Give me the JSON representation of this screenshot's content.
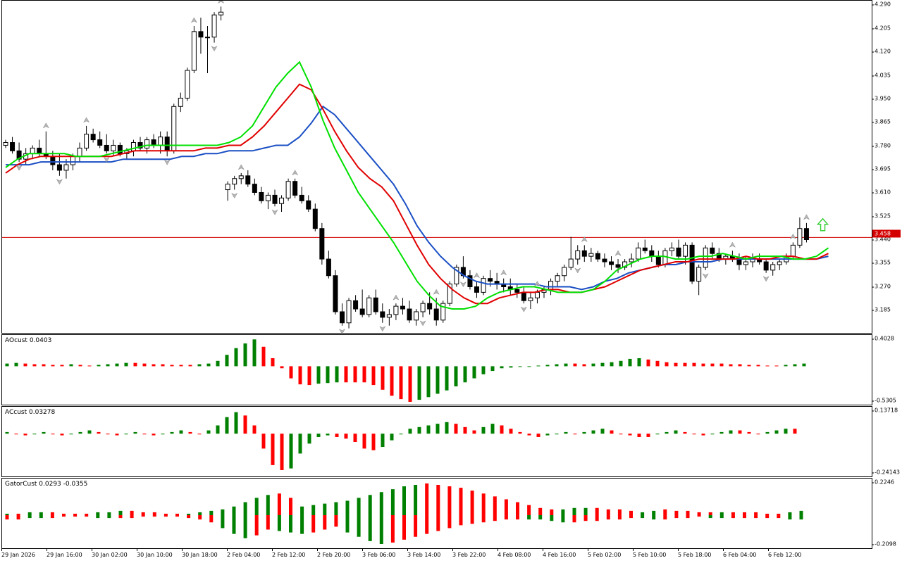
{
  "main_chart": {
    "price_ticks": [
      "4.290",
      "4.205",
      "4.120",
      "4.035",
      "3.950",
      "3.865",
      "3.780",
      "3.695",
      "3.610",
      "3.525",
      "3.440",
      "3.355",
      "3.270",
      "3.185"
    ],
    "price_range": [
      3.124,
      4.296
    ],
    "current_price": "3.458",
    "current_price_value": 3.458,
    "colors": {
      "bull_candle": "#ffffff",
      "bear_candle": "#000000",
      "price_line": "#d40000",
      "green_line": "#00e000",
      "red_line": "#e00000",
      "blue_line": "#1a4fc4",
      "fractal_arrow": "#b5b5b5",
      "buy_arrow": "#3ccf3c"
    },
    "candles": [
      [
        3.79,
        3.81,
        3.78,
        3.8
      ],
      [
        3.8,
        3.82,
        3.76,
        3.77
      ],
      [
        3.77,
        3.8,
        3.73,
        3.74
      ],
      [
        3.74,
        3.78,
        3.72,
        3.76
      ],
      [
        3.76,
        3.79,
        3.74,
        3.78
      ],
      [
        3.78,
        3.81,
        3.75,
        3.76
      ],
      [
        3.76,
        3.84,
        3.74,
        3.75
      ],
      [
        3.75,
        3.77,
        3.7,
        3.72
      ],
      [
        3.72,
        3.76,
        3.68,
        3.7
      ],
      [
        3.7,
        3.74,
        3.67,
        3.72
      ],
      [
        3.72,
        3.76,
        3.7,
        3.75
      ],
      [
        3.75,
        3.8,
        3.73,
        3.78
      ],
      [
        3.78,
        3.86,
        3.77,
        3.83
      ],
      [
        3.83,
        3.85,
        3.8,
        3.81
      ],
      [
        3.81,
        3.84,
        3.78,
        3.79
      ],
      [
        3.79,
        3.83,
        3.76,
        3.77
      ],
      [
        3.77,
        3.81,
        3.75,
        3.79
      ],
      [
        3.79,
        3.8,
        3.75,
        3.76
      ],
      [
        3.76,
        3.78,
        3.74,
        3.77
      ],
      [
        3.77,
        3.81,
        3.75,
        3.8
      ],
      [
        3.8,
        3.82,
        3.77,
        3.78
      ],
      [
        3.78,
        3.82,
        3.76,
        3.81
      ],
      [
        3.81,
        3.83,
        3.78,
        3.79
      ],
      [
        3.79,
        3.84,
        3.76,
        3.82
      ],
      [
        3.82,
        3.84,
        3.75,
        3.77
      ],
      [
        3.77,
        3.94,
        3.76,
        3.93
      ],
      [
        3.93,
        3.98,
        3.91,
        3.96
      ],
      [
        3.96,
        4.07,
        3.95,
        4.06
      ],
      [
        4.06,
        4.22,
        4.05,
        4.2
      ],
      [
        4.2,
        4.25,
        4.12,
        4.18
      ],
      [
        4.18,
        4.22,
        4.05,
        4.18
      ],
      [
        4.18,
        4.27,
        4.16,
        4.26
      ],
      [
        4.26,
        4.29,
        4.24,
        4.27
      ],
      [
        3.63,
        3.66,
        3.59,
        3.65
      ],
      [
        3.65,
        3.68,
        3.63,
        3.67
      ],
      [
        3.67,
        3.69,
        3.65,
        3.68
      ],
      [
        3.68,
        3.7,
        3.64,
        3.65
      ],
      [
        3.65,
        3.67,
        3.61,
        3.62
      ],
      [
        3.62,
        3.64,
        3.58,
        3.59
      ],
      [
        3.59,
        3.62,
        3.56,
        3.61
      ],
      [
        3.61,
        3.63,
        3.57,
        3.58
      ],
      [
        3.58,
        3.61,
        3.55,
        3.6
      ],
      [
        3.6,
        3.67,
        3.59,
        3.66
      ],
      [
        3.66,
        3.67,
        3.6,
        3.61
      ],
      [
        3.61,
        3.64,
        3.58,
        3.59
      ],
      [
        3.59,
        3.61,
        3.55,
        3.56
      ],
      [
        3.56,
        3.58,
        3.48,
        3.49
      ],
      [
        3.49,
        3.51,
        3.36,
        3.38
      ],
      [
        3.38,
        3.41,
        3.31,
        3.32
      ],
      [
        3.32,
        3.34,
        3.18,
        3.19
      ],
      [
        3.19,
        3.22,
        3.14,
        3.15
      ],
      [
        3.15,
        3.24,
        3.13,
        3.23
      ],
      [
        3.23,
        3.25,
        3.19,
        3.2
      ],
      [
        3.2,
        3.27,
        3.17,
        3.18
      ],
      [
        3.18,
        3.25,
        3.17,
        3.24
      ],
      [
        3.24,
        3.27,
        3.18,
        3.19
      ],
      [
        3.19,
        3.22,
        3.15,
        3.17
      ],
      [
        3.17,
        3.2,
        3.14,
        3.18
      ],
      [
        3.18,
        3.22,
        3.16,
        3.21
      ],
      [
        3.21,
        3.24,
        3.18,
        3.2
      ],
      [
        3.2,
        3.23,
        3.15,
        3.16
      ],
      [
        3.16,
        3.2,
        3.14,
        3.19
      ],
      [
        3.19,
        3.23,
        3.17,
        3.22
      ],
      [
        3.22,
        3.26,
        3.18,
        3.2
      ],
      [
        3.2,
        3.24,
        3.14,
        3.16
      ],
      [
        3.16,
        3.23,
        3.15,
        3.22
      ],
      [
        3.22,
        3.3,
        3.21,
        3.29
      ],
      [
        3.29,
        3.36,
        3.28,
        3.35
      ],
      [
        3.35,
        3.39,
        3.31,
        3.32
      ],
      [
        3.32,
        3.34,
        3.27,
        3.28
      ],
      [
        3.28,
        3.3,
        3.24,
        3.26
      ],
      [
        3.26,
        3.32,
        3.25,
        3.31
      ],
      [
        3.31,
        3.34,
        3.28,
        3.3
      ],
      [
        3.3,
        3.33,
        3.27,
        3.29
      ],
      [
        3.29,
        3.31,
        3.26,
        3.28
      ],
      [
        3.28,
        3.31,
        3.25,
        3.27
      ],
      [
        3.27,
        3.29,
        3.24,
        3.26
      ],
      [
        3.26,
        3.28,
        3.22,
        3.23
      ],
      [
        3.23,
        3.26,
        3.2,
        3.24
      ],
      [
        3.24,
        3.27,
        3.22,
        3.26
      ],
      [
        3.26,
        3.28,
        3.24,
        3.27
      ],
      [
        3.27,
        3.31,
        3.25,
        3.3
      ],
      [
        3.3,
        3.33,
        3.28,
        3.32
      ],
      [
        3.32,
        3.36,
        3.3,
        3.35
      ],
      [
        3.35,
        3.46,
        3.34,
        3.38
      ],
      [
        3.38,
        3.43,
        3.36,
        3.41
      ],
      [
        3.41,
        3.43,
        3.37,
        3.39
      ],
      [
        3.39,
        3.42,
        3.37,
        3.4
      ],
      [
        3.4,
        3.41,
        3.37,
        3.38
      ],
      [
        3.38,
        3.4,
        3.35,
        3.37
      ],
      [
        3.37,
        3.39,
        3.34,
        3.36
      ],
      [
        3.36,
        3.38,
        3.33,
        3.35
      ],
      [
        3.35,
        3.38,
        3.34,
        3.37
      ],
      [
        3.37,
        3.4,
        3.35,
        3.38
      ],
      [
        3.38,
        3.44,
        3.37,
        3.42
      ],
      [
        3.42,
        3.45,
        3.4,
        3.41
      ],
      [
        3.41,
        3.43,
        3.37,
        3.39
      ],
      [
        3.39,
        3.41,
        3.35,
        3.36
      ],
      [
        3.36,
        3.42,
        3.35,
        3.41
      ],
      [
        3.41,
        3.44,
        3.39,
        3.42
      ],
      [
        3.42,
        3.45,
        3.38,
        3.39
      ],
      [
        3.39,
        3.44,
        3.36,
        3.43
      ],
      [
        3.43,
        3.44,
        3.29,
        3.3
      ],
      [
        3.3,
        3.36,
        3.25,
        3.35
      ],
      [
        3.35,
        3.43,
        3.34,
        3.42
      ],
      [
        3.42,
        3.44,
        3.38,
        3.4
      ],
      [
        3.4,
        3.42,
        3.37,
        3.38
      ],
      [
        3.38,
        3.4,
        3.36,
        3.39
      ],
      [
        3.39,
        3.41,
        3.37,
        3.38
      ],
      [
        3.38,
        3.4,
        3.34,
        3.36
      ],
      [
        3.36,
        3.39,
        3.34,
        3.37
      ],
      [
        3.37,
        3.4,
        3.35,
        3.38
      ],
      [
        3.38,
        3.4,
        3.36,
        3.37
      ],
      [
        3.37,
        3.38,
        3.33,
        3.34
      ],
      [
        3.34,
        3.37,
        3.32,
        3.36
      ],
      [
        3.36,
        3.38,
        3.34,
        3.37
      ],
      [
        3.37,
        3.4,
        3.36,
        3.39
      ],
      [
        3.39,
        3.44,
        3.38,
        3.43
      ],
      [
        3.43,
        3.53,
        3.42,
        3.49
      ],
      [
        3.49,
        3.51,
        3.44,
        3.45
      ]
    ],
    "green_line": [
      3.71,
      3.74,
      3.76,
      3.76,
      3.76,
      3.76,
      3.75,
      3.75,
      3.75,
      3.76,
      3.77,
      3.78,
      3.79,
      3.79,
      3.79,
      3.79,
      3.79,
      3.79,
      3.79,
      3.8,
      3.82,
      3.86,
      3.93,
      4.0,
      4.05,
      4.09,
      4.0,
      3.88,
      3.78,
      3.7,
      3.62,
      3.56,
      3.5,
      3.44,
      3.37,
      3.3,
      3.25,
      3.21,
      3.2,
      3.2,
      3.21,
      3.24,
      3.26,
      3.27,
      3.28,
      3.28,
      3.27,
      3.26,
      3.26,
      3.26,
      3.27,
      3.3,
      3.34,
      3.36,
      3.38,
      3.39,
      3.39,
      3.38,
      3.38,
      3.39,
      3.39,
      3.4,
      3.39,
      3.38,
      3.39,
      3.39,
      3.39,
      3.38,
      3.38,
      3.39,
      3.42
    ],
    "red_line": [
      3.69,
      3.72,
      3.74,
      3.75,
      3.75,
      3.75,
      3.75,
      3.75,
      3.75,
      3.75,
      3.76,
      3.77,
      3.77,
      3.77,
      3.77,
      3.77,
      3.77,
      3.78,
      3.78,
      3.79,
      3.79,
      3.82,
      3.86,
      3.91,
      3.96,
      4.01,
      3.99,
      3.92,
      3.84,
      3.77,
      3.71,
      3.67,
      3.64,
      3.59,
      3.51,
      3.43,
      3.36,
      3.31,
      3.27,
      3.24,
      3.22,
      3.22,
      3.24,
      3.25,
      3.26,
      3.26,
      3.27,
      3.27,
      3.26,
      3.26,
      3.27,
      3.28,
      3.3,
      3.32,
      3.34,
      3.35,
      3.36,
      3.37,
      3.37,
      3.38,
      3.38,
      3.38,
      3.38,
      3.39,
      3.38,
      3.38,
      3.39,
      3.39,
      3.38,
      3.38,
      3.4
    ],
    "blue_line": [
      3.72,
      3.72,
      3.72,
      3.73,
      3.73,
      3.73,
      3.73,
      3.73,
      3.73,
      3.73,
      3.74,
      3.74,
      3.74,
      3.74,
      3.74,
      3.75,
      3.75,
      3.76,
      3.76,
      3.77,
      3.77,
      3.77,
      3.78,
      3.79,
      3.79,
      3.82,
      3.87,
      3.93,
      3.9,
      3.85,
      3.8,
      3.75,
      3.7,
      3.65,
      3.58,
      3.5,
      3.44,
      3.39,
      3.35,
      3.32,
      3.3,
      3.29,
      3.29,
      3.29,
      3.29,
      3.29,
      3.28,
      3.28,
      3.28,
      3.27,
      3.28,
      3.3,
      3.31,
      3.33,
      3.34,
      3.35,
      3.36,
      3.36,
      3.37,
      3.37,
      3.37,
      3.38,
      3.38,
      3.38,
      3.38,
      3.38,
      3.38,
      3.38,
      3.38,
      3.38,
      3.39
    ],
    "fractals_up": [
      6,
      12,
      28,
      32,
      35,
      43,
      58,
      64,
      70,
      74,
      79,
      86,
      91,
      108,
      119,
      117
    ],
    "fractals_down": [
      2,
      8,
      15,
      24,
      31,
      34,
      40,
      50,
      56,
      62,
      68,
      77,
      85,
      104,
      113
    ]
  },
  "ao_panel": {
    "label": "AOcust 0.0403",
    "ticks": [
      "0.4028",
      "-0.5305"
    ],
    "range": [
      -0.5305,
      0.4028
    ],
    "up_color": "#008000",
    "down_color": "#ff0000",
    "values": [
      0.04,
      0.05,
      0.04,
      0.03,
      0.03,
      0.02,
      0.02,
      0.03,
      0.02,
      0.01,
      0.02,
      0.03,
      0.04,
      0.05,
      0.05,
      0.04,
      0.03,
      0.03,
      0.02,
      0.02,
      0.02,
      0.03,
      0.04,
      0.08,
      0.17,
      0.27,
      0.34,
      0.4,
      0.29,
      0.12,
      -0.03,
      -0.18,
      -0.27,
      -0.28,
      -0.26,
      -0.25,
      -0.24,
      -0.24,
      -0.24,
      -0.24,
      -0.28,
      -0.35,
      -0.44,
      -0.49,
      -0.53,
      -0.5,
      -0.46,
      -0.41,
      -0.36,
      -0.3,
      -0.24,
      -0.18,
      -0.12,
      -0.07,
      -0.03,
      -0.02,
      -0.01,
      0.0,
      0.01,
      0.02,
      0.03,
      0.04,
      0.04,
      0.03,
      0.04,
      0.05,
      0.06,
      0.08,
      0.11,
      0.12,
      0.1,
      0.08,
      0.06,
      0.05,
      0.05,
      0.05,
      0.04,
      0.04,
      0.04,
      0.03,
      0.03,
      0.02,
      0.02,
      0.01,
      0.01,
      0.02,
      0.03,
      0.04
    ]
  },
  "ac_panel": {
    "label": "ACcust 0.03278",
    "ticks": [
      "0.13718",
      "-0.24143"
    ],
    "range": [
      -0.24143,
      0.13718
    ],
    "up_color": "#008000",
    "down_color": "#ff0000",
    "values": [
      0.01,
      0.0,
      -0.01,
      0.0,
      0.01,
      0.0,
      -0.01,
      0.0,
      0.01,
      0.02,
      0.01,
      0.0,
      -0.01,
      0.0,
      0.01,
      0.0,
      -0.01,
      0.0,
      0.01,
      0.02,
      0.01,
      0.0,
      0.02,
      0.05,
      0.1,
      0.13,
      0.11,
      0.05,
      -0.09,
      -0.19,
      -0.22,
      -0.21,
      -0.12,
      -0.06,
      -0.02,
      -0.01,
      -0.02,
      -0.03,
      -0.05,
      -0.09,
      -0.1,
      -0.08,
      -0.04,
      0.0,
      0.03,
      0.04,
      0.05,
      0.06,
      0.07,
      0.06,
      0.04,
      0.02,
      0.04,
      0.06,
      0.05,
      0.03,
      0.01,
      -0.01,
      -0.02,
      -0.01,
      0.0,
      0.01,
      0.0,
      0.01,
      0.02,
      0.03,
      0.02,
      0.0,
      -0.01,
      -0.02,
      -0.02,
      0.0,
      0.01,
      0.02,
      0.01,
      0.0,
      -0.01,
      0.0,
      0.01,
      0.02,
      0.02,
      0.01,
      0.0,
      0.01,
      0.02,
      0.03,
      0.03
    ]
  },
  "gator_panel": {
    "label": "GatorCust 0.0293 -0.0355",
    "ticks": [
      "0.2246",
      "-0.2098"
    ],
    "range": [
      -0.2098,
      0.2246
    ],
    "up_color": "#008000",
    "down_color": "#ff0000",
    "upper": [
      0.01,
      0.01,
      0.02,
      0.02,
      0.02,
      0.01,
      0.01,
      0.01,
      0.02,
      0.02,
      0.03,
      0.03,
      0.02,
      0.02,
      0.01,
      0.01,
      0.01,
      0.02,
      0.03,
      0.04,
      0.06,
      0.09,
      0.12,
      0.14,
      0.15,
      0.12,
      0.06,
      0.07,
      0.08,
      0.09,
      0.1,
      0.12,
      0.14,
      0.16,
      0.18,
      0.2,
      0.21,
      0.22,
      0.21,
      0.2,
      0.19,
      0.17,
      0.15,
      0.13,
      0.11,
      0.09,
      0.07,
      0.05,
      0.04,
      0.04,
      0.05,
      0.05,
      0.05,
      0.04,
      0.04,
      0.03,
      0.02,
      0.03,
      0.04,
      0.03,
      0.03,
      0.02,
      0.02,
      0.02,
      0.02,
      0.02,
      0.02,
      0.01,
      0.01,
      0.02,
      0.03
    ],
    "upper_up": [
      1,
      0,
      1,
      1,
      0,
      0,
      0,
      0,
      1,
      1,
      1,
      0,
      0,
      0,
      0,
      0,
      1,
      1,
      1,
      1,
      1,
      1,
      1,
      1,
      0,
      0,
      1,
      1,
      1,
      1,
      1,
      1,
      1,
      1,
      1,
      1,
      1,
      0,
      0,
      0,
      0,
      0,
      0,
      0,
      0,
      0,
      0,
      0,
      0,
      1,
      1,
      1,
      0,
      0,
      0,
      0,
      1,
      1,
      0,
      0,
      0,
      0,
      0,
      1,
      0,
      0,
      0,
      0,
      0,
      1,
      1
    ],
    "lower": [
      -0.03,
      -0.03,
      -0.02,
      -0.02,
      -0.02,
      -0.01,
      -0.01,
      -0.01,
      -0.02,
      -0.02,
      -0.02,
      -0.02,
      -0.01,
      -0.01,
      -0.01,
      -0.01,
      -0.02,
      -0.03,
      -0.05,
      -0.09,
      -0.13,
      -0.16,
      -0.14,
      -0.1,
      -0.11,
      -0.12,
      -0.13,
      -0.12,
      -0.1,
      -0.08,
      -0.12,
      -0.15,
      -0.18,
      -0.2,
      -0.19,
      -0.17,
      -0.15,
      -0.13,
      -0.11,
      -0.09,
      -0.07,
      -0.06,
      -0.05,
      -0.04,
      -0.03,
      -0.03,
      -0.03,
      -0.03,
      -0.04,
      -0.05,
      -0.05,
      -0.04,
      -0.04,
      -0.03,
      -0.03,
      -0.02,
      -0.02,
      -0.03,
      -0.03,
      -0.02,
      -0.02,
      -0.01,
      -0.02,
      -0.02,
      -0.02,
      -0.02,
      -0.02,
      -0.02,
      -0.02,
      -0.03,
      -0.03
    ],
    "lower_up": [
      0,
      0,
      1,
      1,
      0,
      0,
      0,
      0,
      1,
      1,
      0,
      0,
      0,
      0,
      0,
      0,
      0,
      0,
      0,
      1,
      1,
      1,
      0,
      0,
      1,
      1,
      1,
      0,
      0,
      0,
      1,
      1,
      1,
      1,
      0,
      0,
      0,
      0,
      0,
      0,
      0,
      0,
      0,
      0,
      0,
      0,
      1,
      1,
      1,
      1,
      0,
      0,
      0,
      0,
      0,
      0,
      1,
      1,
      0,
      0,
      0,
      0,
      1,
      1,
      0,
      0,
      0,
      0,
      0,
      1,
      1
    ]
  },
  "time_axis": {
    "labels": [
      "29 Jan 2026",
      "29 Jan 16:00",
      "30 Jan 02:00",
      "30 Jan 10:00",
      "30 Jan 18:00",
      "2 Feb 04:00",
      "2 Feb 12:00",
      "2 Feb 20:00",
      "3 Feb 06:00",
      "3 Feb 14:00",
      "3 Feb 22:00",
      "4 Feb 08:00",
      "4 Feb 16:00",
      "5 Feb 02:00",
      "5 Feb 10:00",
      "5 Feb 18:00",
      "6 Feb 04:00",
      "6 Feb 12:00"
    ]
  }
}
